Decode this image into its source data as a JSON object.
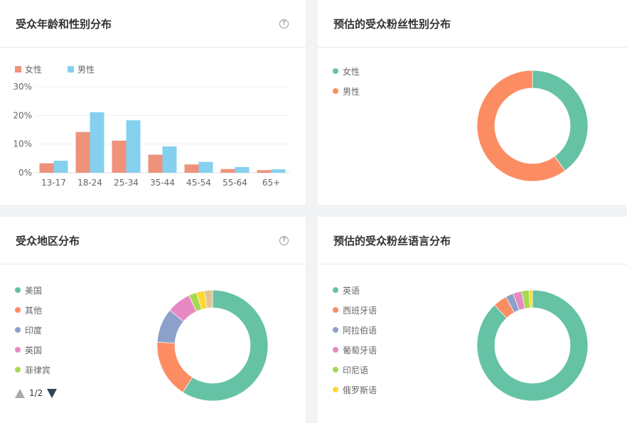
{
  "panels": {
    "age": {
      "title": "受众年龄和性别分布"
    },
    "gender": {
      "title": "预估的受众粉丝性别分布"
    },
    "region": {
      "title": "受众地区分布",
      "pager": "1/2"
    },
    "language": {
      "title": "预估的受众粉丝语言分布"
    }
  },
  "help_icon": "?",
  "chart_data": [
    {
      "type": "bar",
      "categories": [
        "13-17",
        "18-24",
        "25-34",
        "35-44",
        "45-54",
        "55-64",
        "65+"
      ],
      "series": [
        {
          "name": "女性",
          "color": "#ee927c",
          "values": [
            3.3,
            14.2,
            11.2,
            6.3,
            2.9,
            1.3,
            0.9
          ]
        },
        {
          "name": "男性",
          "color": "#85d0ee",
          "values": [
            4.2,
            21.1,
            18.3,
            9.2,
            3.8,
            2.0,
            1.2
          ]
        }
      ],
      "yticks": [
        "0%",
        "10%",
        "20%",
        "30%"
      ],
      "ylim": [
        0,
        30
      ],
      "grid": true,
      "legend": "top-left"
    },
    {
      "type": "pie",
      "items": [
        {
          "name": "女性",
          "color": "#66c2a5",
          "value": 40
        },
        {
          "name": "男性",
          "color": "#fc8d62",
          "value": 60
        }
      ]
    },
    {
      "type": "pie",
      "items": [
        {
          "name": "美国",
          "color": "#66c2a5",
          "value": 59
        },
        {
          "name": "其他",
          "color": "#fc8d62",
          "value": 17
        },
        {
          "name": "印度",
          "color": "#8da0cb",
          "value": 10
        },
        {
          "name": "英国",
          "color": "#e78ac3",
          "value": 7
        },
        {
          "name": "菲律宾",
          "color": "#a6d854",
          "value": 2.3
        },
        {
          "name": "",
          "color": "#ffd92f",
          "value": 2.3
        },
        {
          "name": "",
          "color": "#e5c494",
          "value": 2.4
        }
      ]
    },
    {
      "type": "pie",
      "items": [
        {
          "name": "英语",
          "color": "#66c2a5",
          "value": 88
        },
        {
          "name": "西班牙语",
          "color": "#fc8d62",
          "value": 4
        },
        {
          "name": "阿拉伯语",
          "color": "#8da0cb",
          "value": 2.3
        },
        {
          "name": "葡萄牙语",
          "color": "#e78ac3",
          "value": 2.5
        },
        {
          "name": "印尼语",
          "color": "#a6d854",
          "value": 2.2
        },
        {
          "name": "俄罗斯语",
          "color": "#ffd92f",
          "value": 1
        }
      ]
    }
  ]
}
